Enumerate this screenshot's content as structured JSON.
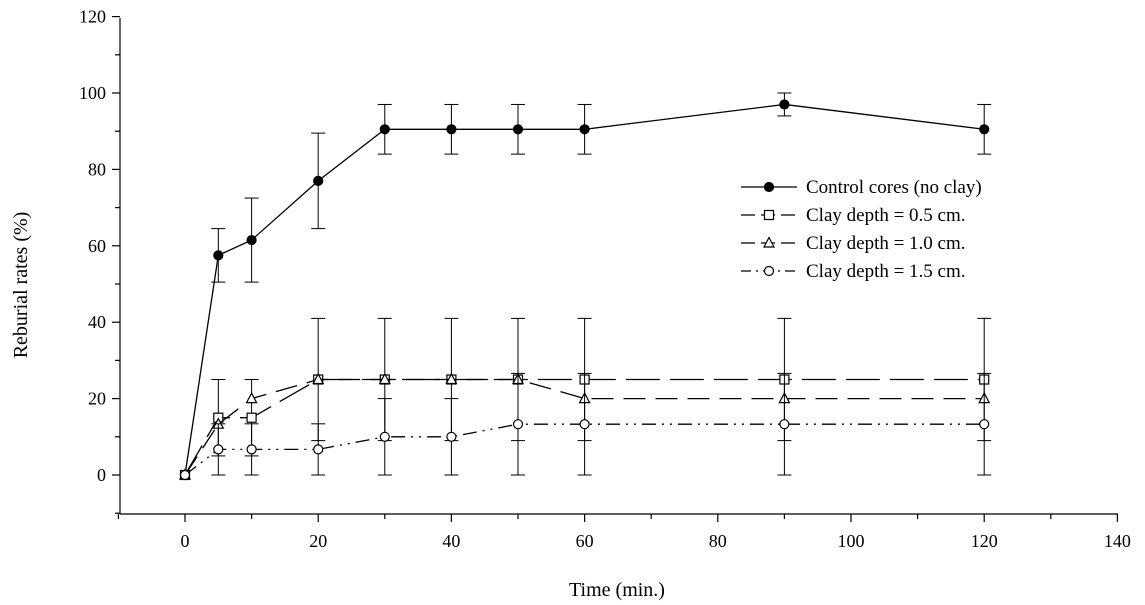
{
  "chart_data": {
    "type": "line",
    "xlabel": "Time (min.)",
    "ylabel": "Reburial rates (%)",
    "xlim": [
      -10,
      140
    ],
    "ylim": [
      -10,
      120
    ],
    "xticks": [
      0,
      20,
      40,
      60,
      80,
      100,
      120,
      140
    ],
    "yticks": [
      0,
      20,
      40,
      60,
      80,
      100,
      120
    ],
    "legend_position": "center-right",
    "grid": false,
    "series": [
      {
        "name": "Control cores (no clay)",
        "marker": "filled-circle",
        "line_style": "solid",
        "x": [
          0,
          5,
          10,
          20,
          30,
          40,
          50,
          60,
          90,
          120
        ],
        "y": [
          0,
          57.5,
          61.5,
          77,
          90.5,
          90.5,
          90.5,
          90.5,
          97,
          90.5
        ],
        "err": [
          0,
          7,
          11,
          12.5,
          6.5,
          6.5,
          6.5,
          6.5,
          3,
          6.5
        ]
      },
      {
        "name": "Clay depth = 0.5 cm.",
        "marker": "open-square",
        "line_style": "long-dash",
        "x": [
          0,
          5,
          10,
          20,
          30,
          40,
          50,
          60,
          90,
          120
        ],
        "y": [
          0,
          15,
          15,
          25,
          25,
          25,
          25,
          25,
          25,
          25
        ],
        "err": [
          0,
          10,
          10,
          16,
          16,
          16,
          16,
          16,
          16,
          16
        ]
      },
      {
        "name": "Clay depth = 1.0 cm.",
        "marker": "open-triangle",
        "line_style": "dash",
        "x": [
          0,
          5,
          10,
          20,
          30,
          40,
          50,
          60,
          90,
          120
        ],
        "y": [
          0,
          13.3,
          20,
          25,
          25,
          25,
          25,
          20,
          20,
          20
        ],
        "err": [
          0,
          0,
          0,
          0,
          0,
          0,
          0,
          0,
          0,
          0
        ]
      },
      {
        "name": "Clay depth = 1.5 cm.",
        "marker": "open-circle",
        "line_style": "dash-dot-dot",
        "x": [
          0,
          5,
          10,
          20,
          30,
          40,
          50,
          60,
          90,
          120
        ],
        "y": [
          0,
          6.7,
          6.7,
          6.7,
          10,
          10,
          13.3,
          13.3,
          13.3,
          13.3
        ],
        "err": [
          0,
          6.7,
          6.7,
          6.7,
          10,
          10,
          13.3,
          13.3,
          13.3,
          13.3
        ]
      }
    ]
  }
}
